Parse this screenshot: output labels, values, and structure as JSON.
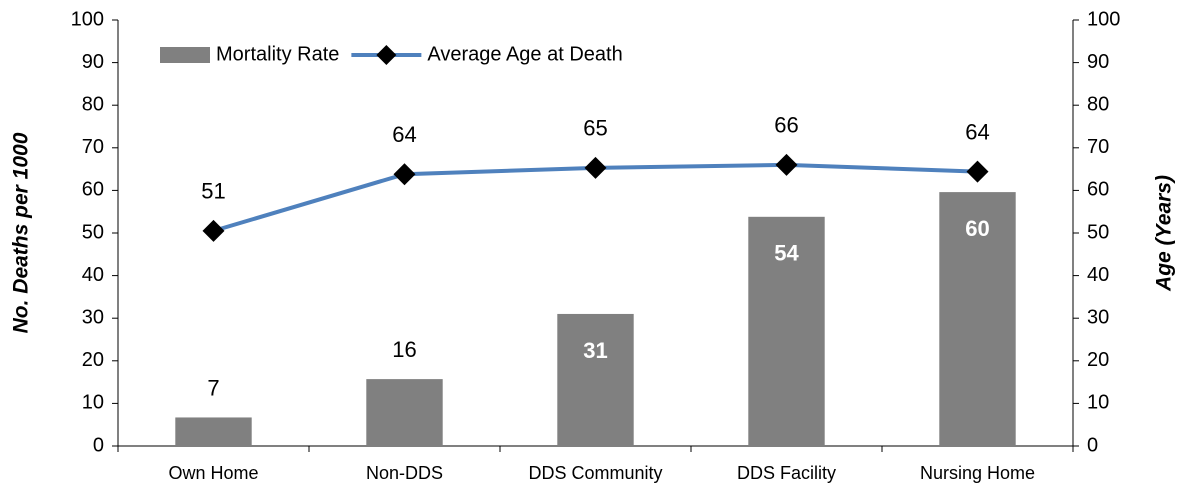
{
  "chart_data": {
    "type": "combo",
    "categories": [
      "Own Home",
      "Non-DDS",
      "DDS Community",
      "DDS Facility",
      "Nursing Home"
    ],
    "series": [
      {
        "name": "Mortality Rate",
        "type": "bar",
        "color": "#808080",
        "values": [
          6.7,
          15.7,
          31.0,
          53.8,
          59.6
        ],
        "value_labels": [
          "7",
          "16",
          "31",
          "54",
          "60"
        ]
      },
      {
        "name": "Average Age at Death",
        "type": "line",
        "axis": "y2",
        "color": "#4f81bd",
        "marker_color": "#000000",
        "values": [
          50.5,
          63.8,
          65.3,
          66.0,
          64.4
        ],
        "value_labels": [
          "51",
          "64",
          "65",
          "66",
          "64"
        ]
      }
    ],
    "ylabel": "No. Deaths per 1000",
    "y2label": "Age (Years)",
    "ylim": [
      0,
      100
    ],
    "yticks": [
      0,
      10,
      20,
      30,
      40,
      50,
      60,
      70,
      80,
      90,
      100
    ],
    "y2lim": [
      0,
      100
    ],
    "y2ticks": [
      0,
      10,
      20,
      30,
      40,
      50,
      60,
      70,
      80,
      90,
      100
    ],
    "legend": "top-left"
  }
}
